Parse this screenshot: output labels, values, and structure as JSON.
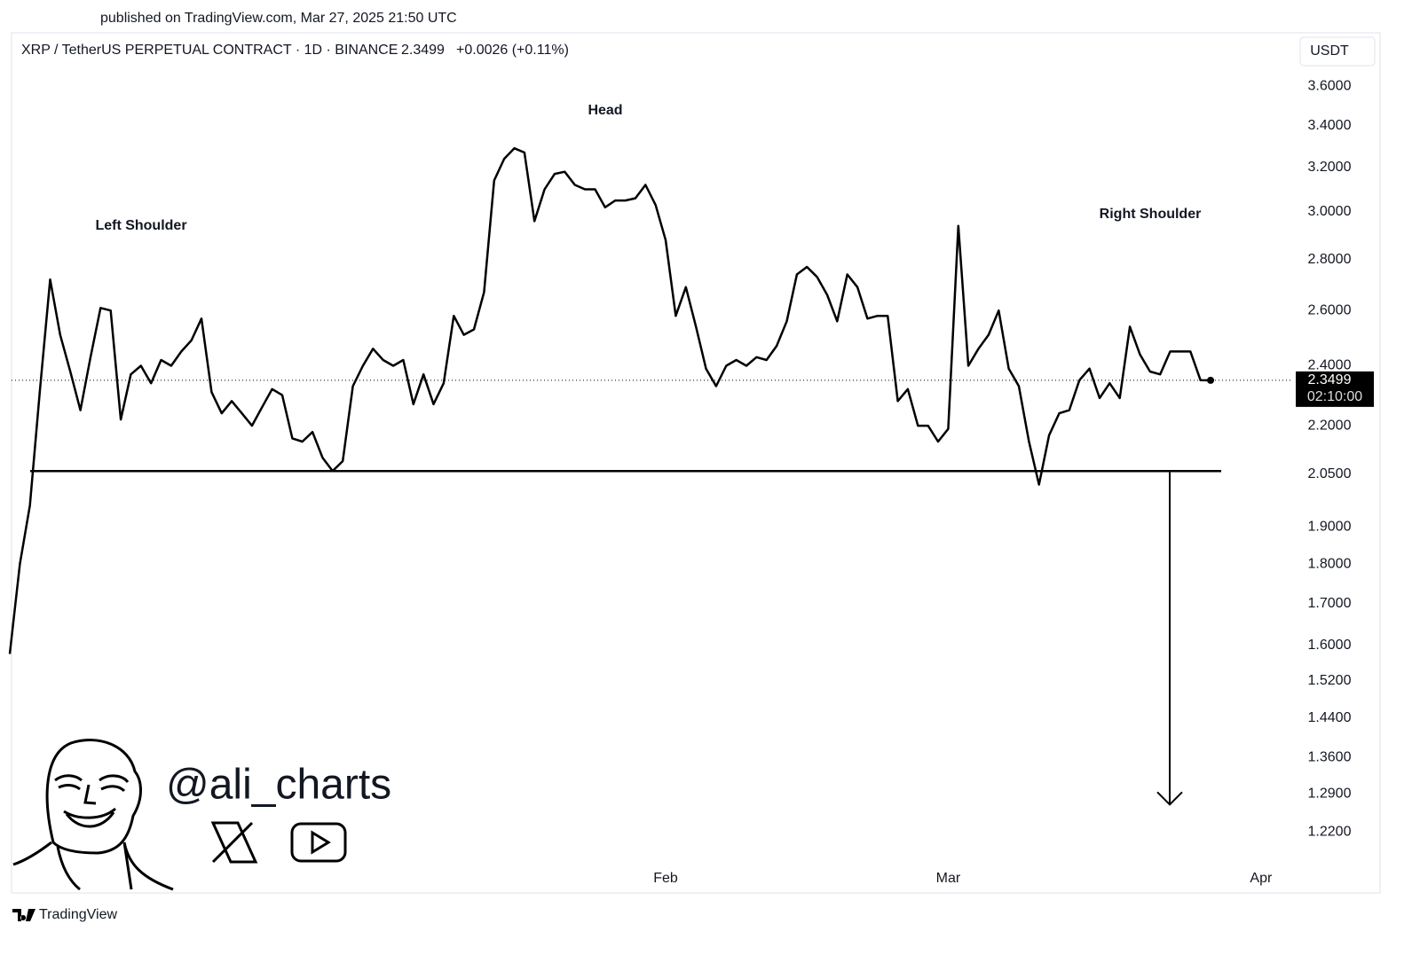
{
  "header": {
    "published": "published on TradingView.com, Mar 27, 2025 21:50 UTC",
    "symbol": "XRP / TetherUS PERPETUAL CONTRACT · 1D · BINANCE",
    "last": 2.3499,
    "change": "+0.0026 (+0.11%)"
  },
  "chart_data": {
    "type": "line",
    "log_scale": true,
    "grid": false,
    "color": "#000000",
    "currency": "USDT",
    "countdown": "02:10:00",
    "annotations": [
      "Left Shoulder",
      "Head",
      "Right Shoulder"
    ],
    "neckline": 2.06,
    "target": 1.27,
    "categories": [
      null,
      null,
      null,
      null,
      null,
      null,
      null,
      null,
      null,
      null,
      null,
      null,
      null,
      null,
      null,
      null,
      null,
      null,
      null,
      null,
      null,
      null,
      null,
      null,
      null,
      null,
      null,
      null,
      null,
      null,
      null,
      null,
      null,
      null,
      null,
      null,
      null,
      null,
      null,
      null,
      null,
      null,
      null,
      null,
      null,
      null,
      null,
      null,
      null,
      null,
      null,
      null,
      null,
      null,
      null,
      null,
      null,
      null,
      null,
      null,
      null,
      null,
      null,
      null,
      null,
      "Feb",
      null,
      null,
      null,
      null,
      null,
      null,
      null,
      null,
      null,
      null,
      null,
      null,
      null,
      null,
      null,
      null,
      null,
      null,
      null,
      null,
      null,
      null,
      null,
      null,
      null,
      null,
      null,
      "Mar",
      null,
      null,
      null,
      null,
      null,
      null,
      null,
      null,
      null,
      null,
      null,
      null,
      null,
      null,
      null,
      null,
      null,
      null,
      null,
      null,
      null,
      null,
      null,
      null,
      null,
      null,
      null,
      null,
      null,
      null,
      "Apr"
    ],
    "values": [
      1.58,
      1.8,
      1.96,
      2.32,
      2.72,
      2.51,
      2.38,
      2.25,
      2.43,
      2.61,
      2.6,
      2.22,
      2.37,
      2.4,
      2.34,
      2.42,
      2.4,
      2.45,
      2.49,
      2.57,
      2.31,
      2.24,
      2.28,
      2.24,
      2.2,
      2.26,
      2.32,
      2.3,
      2.16,
      2.15,
      2.18,
      2.1,
      2.06,
      2.09,
      2.33,
      2.4,
      2.46,
      2.42,
      2.4,
      2.42,
      2.27,
      2.37,
      2.27,
      2.34,
      2.58,
      2.51,
      2.53,
      2.67,
      3.14,
      3.24,
      3.29,
      3.27,
      2.96,
      3.1,
      3.17,
      3.18,
      3.12,
      3.1,
      3.1,
      3.02,
      3.05,
      3.05,
      3.06,
      3.12,
      3.03,
      2.88,
      2.58,
      2.69,
      2.54,
      2.39,
      2.33,
      2.4,
      2.42,
      2.4,
      2.43,
      2.42,
      2.47,
      2.56,
      2.74,
      2.77,
      2.73,
      2.66,
      2.56,
      2.74,
      2.69,
      2.57,
      2.58,
      2.58,
      2.28,
      2.32,
      2.2,
      2.2,
      2.15,
      2.19,
      2.94,
      2.4,
      2.46,
      2.51,
      2.6,
      2.39,
      2.33,
      2.15,
      2.02,
      2.17,
      2.24,
      2.25,
      2.35,
      2.39,
      2.29,
      2.34,
      2.29,
      2.54,
      2.44,
      2.38,
      2.37,
      2.45,
      2.45,
      2.45,
      2.35,
      2.3499,
      null,
      null,
      null,
      null,
      null
    ],
    "ylim": [
      1.12,
      3.89
    ],
    "yticks": [
      {
        "value": 3.6,
        "label": "3.6000"
      },
      {
        "value": 3.4,
        "label": "3.4000"
      },
      {
        "value": 3.2,
        "label": "3.2000"
      },
      {
        "value": 3.0,
        "label": "3.0000"
      },
      {
        "value": 2.8,
        "label": "2.8000"
      },
      {
        "value": 2.6,
        "label": "2.6000"
      },
      {
        "value": 2.4,
        "label": "2.4000"
      },
      {
        "value": 2.2,
        "label": "2.2000"
      },
      {
        "value": 2.05,
        "label": "2.0500"
      },
      {
        "value": 1.9,
        "label": "1.9000"
      },
      {
        "value": 1.8,
        "label": "1.8000"
      },
      {
        "value": 1.7,
        "label": "1.7000"
      },
      {
        "value": 1.6,
        "label": "1.6000"
      },
      {
        "value": 1.52,
        "label": "1.5200"
      },
      {
        "value": 1.44,
        "label": "1.4400"
      },
      {
        "value": 1.36,
        "label": "1.3600"
      },
      {
        "value": 1.29,
        "label": "1.2900"
      },
      {
        "value": 1.22,
        "label": "1.2200"
      }
    ]
  },
  "watermark": {
    "handle": "@ali_charts"
  },
  "footer": {
    "brand": "TradingView"
  }
}
